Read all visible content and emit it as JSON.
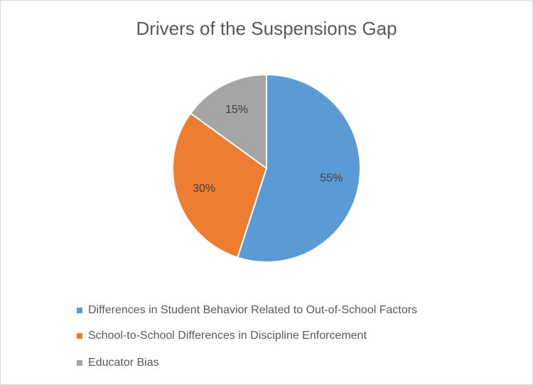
{
  "chart_data": {
    "type": "pie",
    "title": "Drivers of the Suspensions Gap",
    "categories": [
      "Differences in Student Behavior Related to Out-of-School Factors",
      "School-to-School Differences in Discipline Enforcement",
      "Educator Bias"
    ],
    "values": [
      55,
      30,
      15
    ],
    "value_labels": [
      "55%",
      "30%",
      "15%"
    ],
    "colors": [
      "#5b9bd5",
      "#ed7d31",
      "#a5a5a5"
    ],
    "legend": "bottom"
  }
}
